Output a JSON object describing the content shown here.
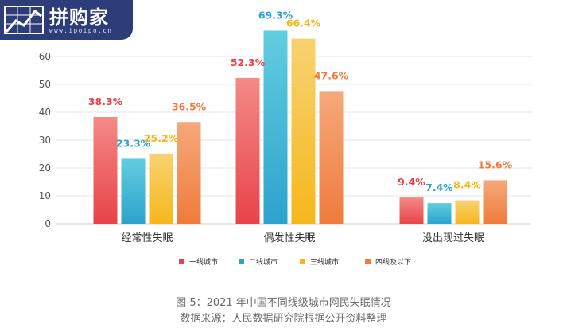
{
  "logo": {
    "text": "拼购家",
    "url": "www.ipoipo.cn"
  },
  "colors": {
    "series": [
      "#e8434a",
      "#2da2cd",
      "#f5b71d",
      "#ef7b3c"
    ],
    "series_light": [
      "#f48a86",
      "#62cde0",
      "#f8d271",
      "#f5a97a"
    ],
    "grid": "#e6e6e6",
    "axis_text": "#555555"
  },
  "chart_data": {
    "type": "bar",
    "categories": [
      "经常性失眠",
      "偶发性失眠",
      "没出现过失眠"
    ],
    "series": [
      {
        "name": "一线城市",
        "values": [
          38.3,
          52.3,
          9.4
        ]
      },
      {
        "name": "二线城市",
        "values": [
          23.3,
          69.3,
          7.4
        ]
      },
      {
        "name": "三线城市",
        "values": [
          25.2,
          66.4,
          8.4
        ]
      },
      {
        "name": "四线及以下",
        "values": [
          36.5,
          47.6,
          15.6
        ]
      }
    ],
    "value_suffix": "%",
    "yticks": [
      0,
      10,
      20,
      30,
      40,
      50,
      60
    ],
    "ylim": [
      0,
      70
    ],
    "grid": true,
    "legend_position": "bottom-center",
    "title": "",
    "xlabel": "",
    "ylabel": ""
  },
  "caption": {
    "line1": "图 5：2021 年中国不同线级城市网民失眠情况",
    "line2": "数据来源：人民数据研究院根据公开资料整理"
  }
}
